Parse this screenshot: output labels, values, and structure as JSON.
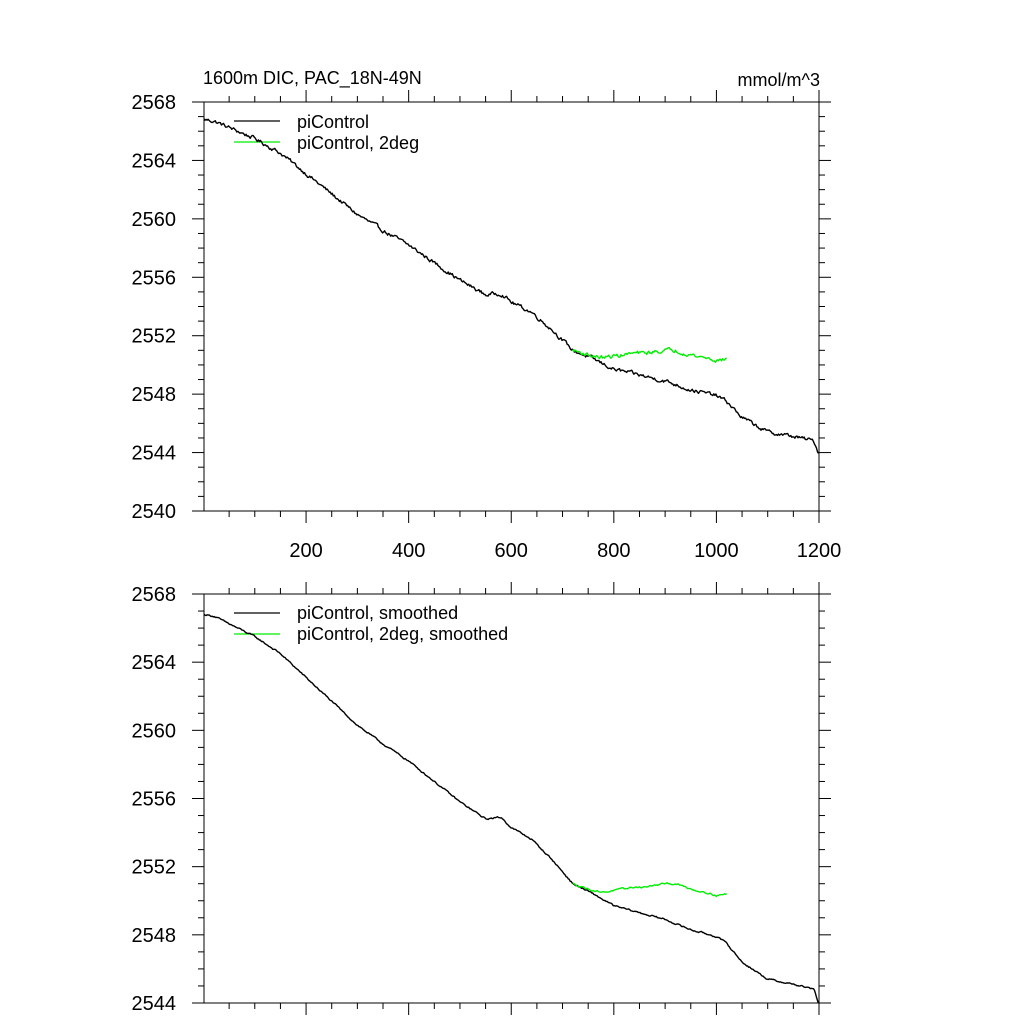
{
  "chart_data": [
    {
      "type": "line",
      "title": "1600m DIC, PAC_18N-49N",
      "units": "mmol/m^3",
      "xlim": [
        1,
        1200
      ],
      "ylim": [
        2540,
        2568
      ],
      "yticks": [
        2540,
        2544,
        2548,
        2552,
        2556,
        2560,
        2564,
        2568
      ],
      "xticks": [
        200,
        400,
        600,
        800,
        1000,
        1200
      ],
      "show_x_tick_labels": true,
      "legend": "top-left",
      "series": [
        {
          "name": "piControl",
          "color": "#000000",
          "noise": 0.22,
          "x": [
            1,
            20,
            60,
            100,
            150,
            200,
            250,
            300,
            350,
            400,
            450,
            500,
            550,
            580,
            600,
            640,
            680,
            720,
            760,
            800,
            850,
            900,
            950,
            1000,
            1020,
            1050,
            1100,
            1150,
            1190,
            1200
          ],
          "values": [
            2566.8,
            2566.7,
            2566.1,
            2565.5,
            2564.5,
            2563.1,
            2561.7,
            2560.3,
            2559.2,
            2558.2,
            2557.0,
            2555.8,
            2554.8,
            2554.9,
            2554.3,
            2553.6,
            2552.4,
            2551.0,
            2550.4,
            2549.7,
            2549.3,
            2548.9,
            2548.3,
            2547.9,
            2547.5,
            2546.4,
            2545.4,
            2545.1,
            2544.8,
            2543.9
          ]
        },
        {
          "name": "piControl, 2deg",
          "color": "#00ee00",
          "noise": 0.22,
          "x": [
            720,
            740,
            760,
            780,
            800,
            820,
            840,
            860,
            880,
            900,
            920,
            940,
            960,
            980,
            1000,
            1020
          ],
          "values": [
            2551.0,
            2550.8,
            2550.6,
            2550.5,
            2550.6,
            2550.7,
            2550.8,
            2550.8,
            2550.9,
            2551.0,
            2551.0,
            2550.8,
            2550.6,
            2550.5,
            2550.3,
            2550.4
          ]
        }
      ]
    },
    {
      "type": "line",
      "xlim": [
        1,
        1200
      ],
      "ylim": [
        2544,
        2568
      ],
      "yticks": [
        2544,
        2548,
        2552,
        2556,
        2560,
        2564,
        2568
      ],
      "xticks": [
        200,
        400,
        600,
        800,
        1000,
        1200
      ],
      "show_x_tick_labels": false,
      "legend": "top-left",
      "series": [
        {
          "name": "piControl, smoothed",
          "color": "#000000",
          "noise": 0.08,
          "x": [
            1,
            20,
            60,
            100,
            150,
            200,
            250,
            300,
            350,
            400,
            450,
            500,
            550,
            580,
            600,
            640,
            680,
            720,
            760,
            800,
            850,
            900,
            950,
            1000,
            1020,
            1050,
            1100,
            1150,
            1190,
            1200
          ],
          "values": [
            2566.8,
            2566.7,
            2566.1,
            2565.5,
            2564.5,
            2563.1,
            2561.7,
            2560.3,
            2559.2,
            2558.2,
            2557.0,
            2555.8,
            2554.8,
            2554.9,
            2554.3,
            2553.6,
            2552.4,
            2551.0,
            2550.4,
            2549.7,
            2549.3,
            2548.9,
            2548.3,
            2547.9,
            2547.5,
            2546.4,
            2545.4,
            2545.1,
            2544.8,
            2543.9
          ]
        },
        {
          "name": "piControl, 2deg, smoothed",
          "color": "#00ee00",
          "noise": 0.08,
          "x": [
            720,
            740,
            760,
            780,
            800,
            820,
            840,
            860,
            880,
            900,
            920,
            940,
            960,
            980,
            1000,
            1020
          ],
          "values": [
            2551.0,
            2550.8,
            2550.6,
            2550.5,
            2550.6,
            2550.7,
            2550.8,
            2550.8,
            2550.9,
            2551.0,
            2551.0,
            2550.8,
            2550.6,
            2550.5,
            2550.3,
            2550.4
          ]
        }
      ]
    }
  ]
}
